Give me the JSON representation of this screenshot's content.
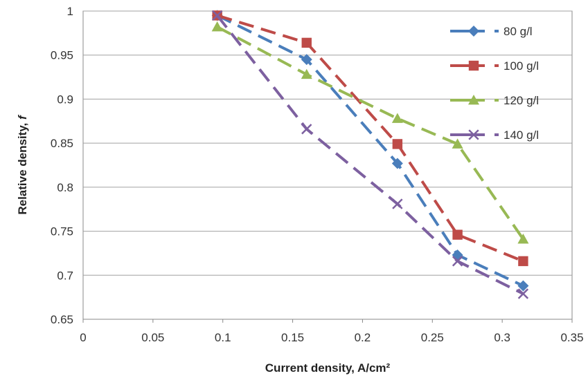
{
  "chart_data": {
    "type": "line",
    "xlabel": "Current density, A/cm²",
    "ylabel": "Relative density, ",
    "ylabel_symbol": "f",
    "xlim": [
      0,
      0.35
    ],
    "ylim": [
      0.65,
      1
    ],
    "x_ticks": [
      "0",
      "0.05",
      "0.1",
      "0.15",
      "0.2",
      "0.25",
      "0.3",
      "0.35"
    ],
    "y_ticks": [
      "0.65",
      "0.7",
      "0.75",
      "0.8",
      "0.85",
      "0.9",
      "0.95",
      "1"
    ],
    "grid": "horizontal",
    "legend_position": "top-right",
    "x": [
      0.096,
      0.16,
      0.225,
      0.268,
      0.315
    ],
    "series": [
      {
        "name": "80 g/l",
        "color": "#4a7ebb",
        "marker": "diamond",
        "values": [
          0.995,
          0.945,
          0.827,
          0.723,
          0.688
        ]
      },
      {
        "name": "100 g/l",
        "color": "#be4b48",
        "marker": "square",
        "values": [
          0.995,
          0.964,
          0.849,
          0.746,
          0.716
        ]
      },
      {
        "name": "120 g/l",
        "color": "#98b954",
        "marker": "triangle",
        "values": [
          0.982,
          0.928,
          0.878,
          0.849,
          0.741
        ]
      },
      {
        "name": "140 g/l",
        "color": "#7d60a0",
        "marker": "x",
        "values": [
          0.995,
          0.866,
          0.781,
          0.716,
          0.679
        ]
      }
    ]
  }
}
